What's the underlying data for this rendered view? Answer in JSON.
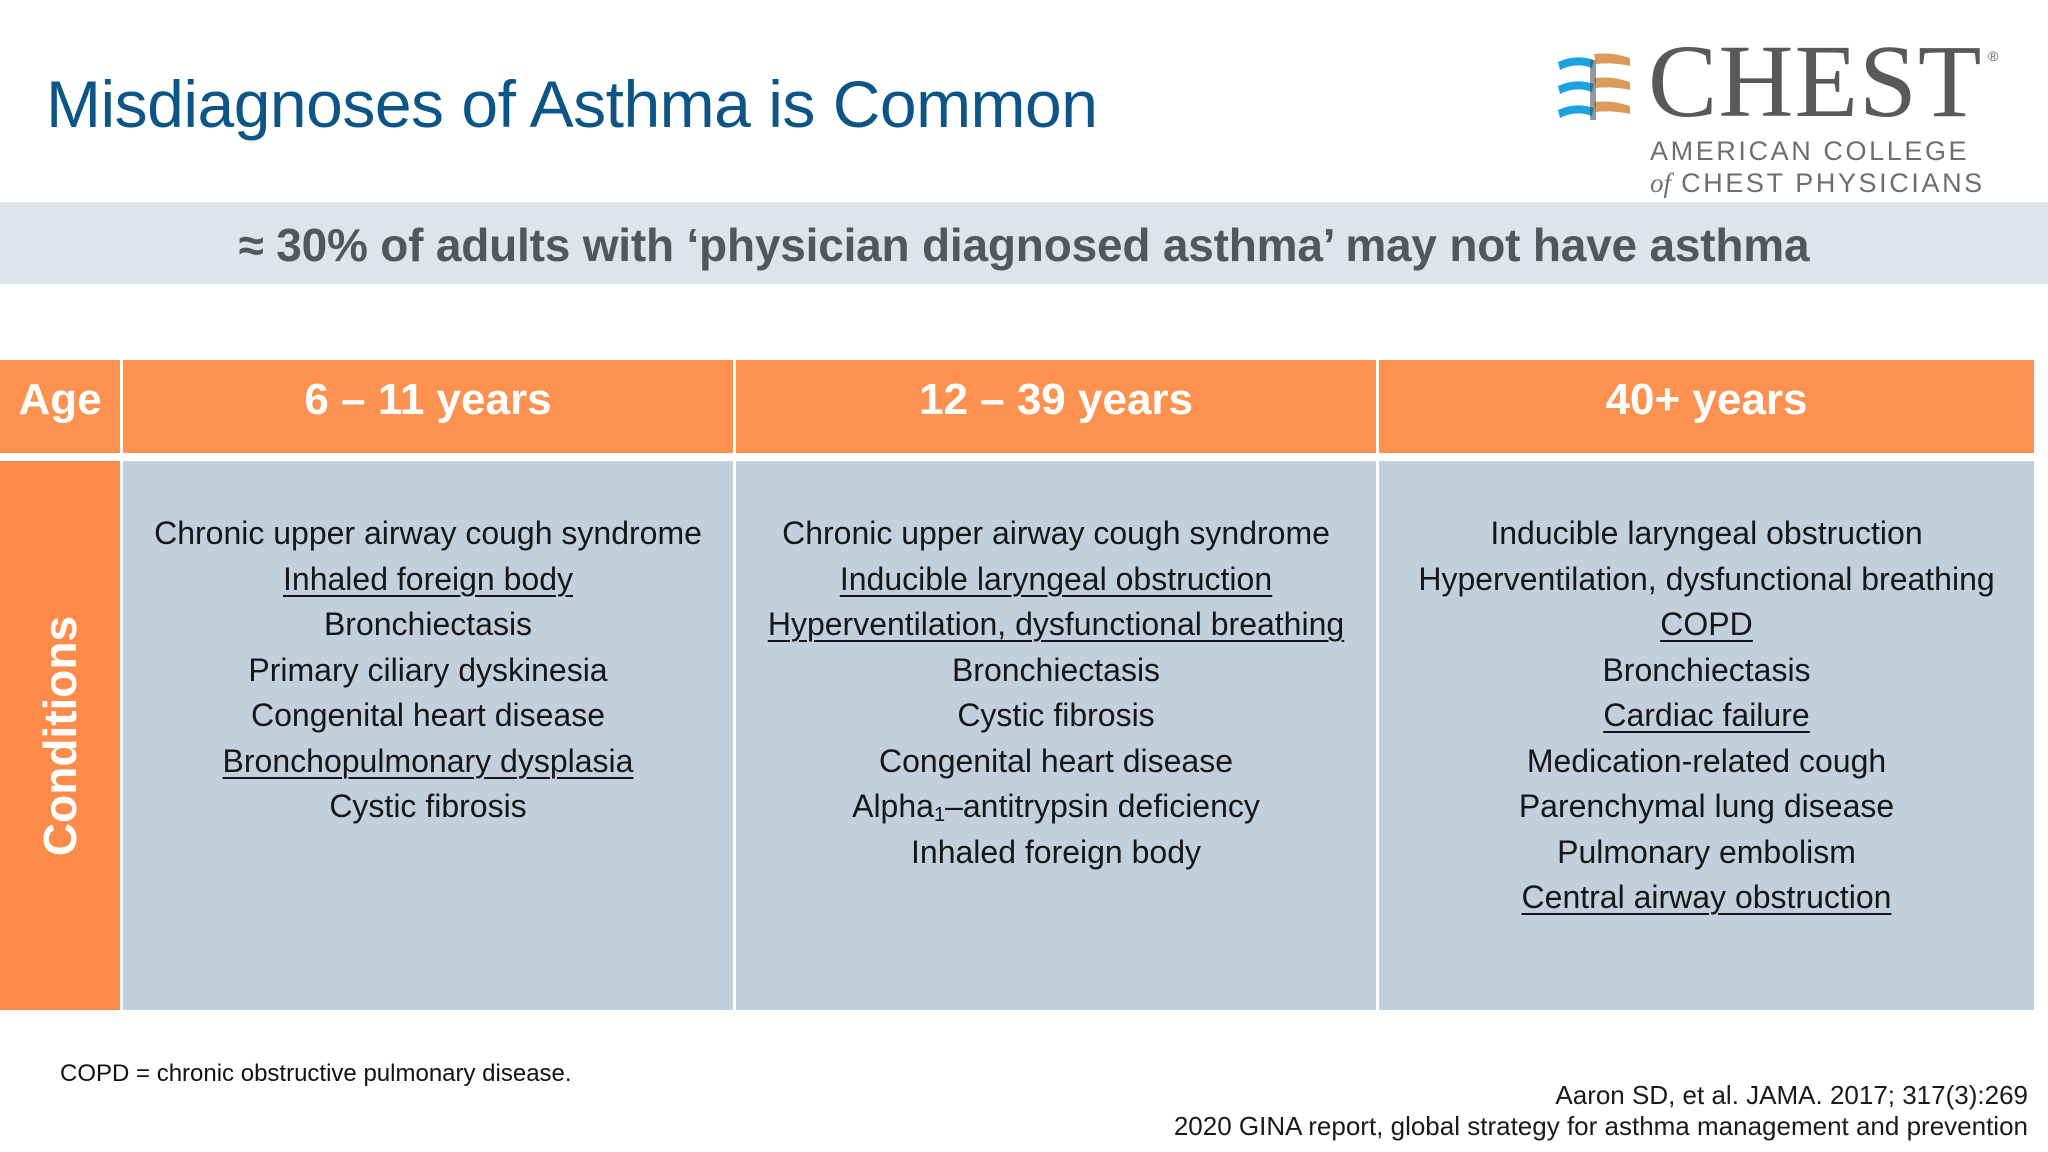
{
  "slide": {
    "title": "Misdiagnoses of Asthma is Common",
    "banner": "≈ 30% of adults with ‘physician diagnosed asthma’ may not have asthma"
  },
  "logo": {
    "wordmark": "CHEST",
    "registered": "®",
    "line1": "AMERICAN COLLEGE",
    "line2_prefix": "of",
    "line2": "CHEST PHYSICIANS",
    "colors": {
      "blue": "#1aa3dc",
      "tan": "#d99a5a",
      "text": "#58595b"
    }
  },
  "table": {
    "row_header_age": "Age",
    "row_header_conditions": "Conditions",
    "columns": [
      {
        "label": "6 – 11 years",
        "conditions": [
          {
            "text": "Chronic upper airway cough syndrome",
            "underline": false
          },
          {
            "text": "Inhaled foreign body",
            "underline": true
          },
          {
            "text": "Bronchiectasis",
            "underline": false
          },
          {
            "text": "Primary ciliary dyskinesia",
            "underline": false
          },
          {
            "text": "Congenital heart disease",
            "underline": false
          },
          {
            "text": "Bronchopulmonary dysplasia",
            "underline": true
          },
          {
            "text": "Cystic fibrosis",
            "underline": false
          }
        ]
      },
      {
        "label": "12 – 39 years",
        "conditions": [
          {
            "text": "Chronic upper airway cough syndrome",
            "underline": false
          },
          {
            "text": "Inducible laryngeal obstruction",
            "underline": true
          },
          {
            "text": "Hyperventilation, dysfunctional breathing",
            "underline": true
          },
          {
            "text": "Bronchiectasis",
            "underline": false
          },
          {
            "text": "Cystic  fibrosis",
            "underline": false
          },
          {
            "text": "Congenital heart disease",
            "underline": false
          },
          {
            "text": "Alpha",
            "sub": "1",
            "text_after": "–antitrypsin deficiency",
            "underline": false
          },
          {
            "text": "Inhaled foreign body",
            "underline": false
          }
        ]
      },
      {
        "label": "40+ years",
        "conditions": [
          {
            "text": "Inducible laryngeal obstruction",
            "underline": false
          },
          {
            "text": "Hyperventilation, dysfunctional breathing",
            "underline": false
          },
          {
            "text": "COPD",
            "underline": true
          },
          {
            "text": "Bronchiectasis",
            "underline": false
          },
          {
            "text": "Cardiac failure",
            "underline": true
          },
          {
            "text": "Medication-related cough",
            "underline": false
          },
          {
            "text": "Parenchymal lung disease",
            "underline": false
          },
          {
            "text": "Pulmonary embolism",
            "underline": false
          },
          {
            "text": "Central airway obstruction",
            "underline": true
          }
        ]
      }
    ],
    "colors": {
      "header_orange": "#fd9150",
      "body_blue": "#c2cfdc",
      "divider": "#ffffff"
    }
  },
  "footnote": "COPD = chronic obstructive pulmonary disease.",
  "references": [
    "Aaron SD, et al. JAMA. 2017; 317(3):269",
    "2020 GINA report, global strategy for asthma management and prevention"
  ],
  "colors": {
    "title": "#0c5586",
    "banner_bg": "#dfe4ea",
    "banner_text": "#53565a"
  }
}
